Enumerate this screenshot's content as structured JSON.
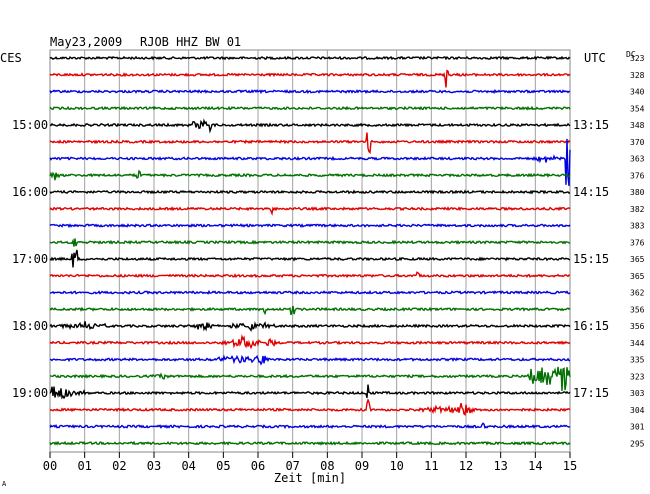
{
  "header": {
    "date": "May23,2009",
    "station": "RJOB HHZ BW 01",
    "left_tz": "CES",
    "right_tz": "UTC",
    "dc_label": "DC"
  },
  "xaxis": {
    "label": "Zeit [min]",
    "ticks": [
      "00",
      "01",
      "02",
      "03",
      "04",
      "05",
      "06",
      "07",
      "08",
      "09",
      "10",
      "11",
      "12",
      "13",
      "14",
      "15"
    ]
  },
  "left_time_labels": [
    "15:00",
    "16:00",
    "17:00",
    "18:00",
    "19:00"
  ],
  "right_time_labels": [
    "13:15",
    "14:15",
    "15:15",
    "16:15",
    "17:15"
  ],
  "dc_values": [
    "323",
    "328",
    "340",
    "354",
    "348",
    "370",
    "363",
    "376",
    "380",
    "382",
    "383",
    "376",
    "365",
    "365",
    "362",
    "356",
    "356",
    "344",
    "335",
    "323",
    "303",
    "304",
    "301",
    "295"
  ],
  "colors": {
    "trace_cycle": [
      "#000000",
      "#e00000",
      "#0000e0",
      "#007000"
    ],
    "grid": "#a0a0a0"
  },
  "footer_mark": "A"
}
